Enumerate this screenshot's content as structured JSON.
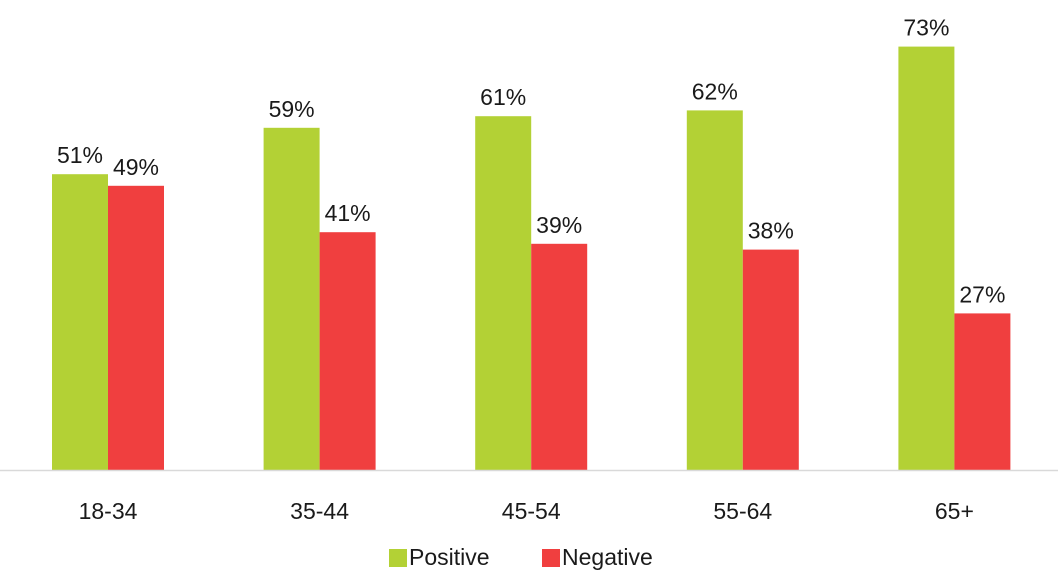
{
  "chart_data": {
    "type": "bar",
    "categories": [
      "18-34",
      "35-44",
      "45-54",
      "55-64",
      "65+"
    ],
    "series": [
      {
        "name": "Positive",
        "values": [
          51,
          59,
          61,
          62,
          73
        ],
        "color": "#b3d135"
      },
      {
        "name": "Negative",
        "values": [
          49,
          41,
          39,
          38,
          27
        ],
        "color": "#f03f3f"
      }
    ],
    "value_suffix": "%",
    "ylim": [
      0,
      80
    ],
    "grid": false,
    "legend": "bottom",
    "title": "",
    "xlabel": "",
    "ylabel": ""
  }
}
